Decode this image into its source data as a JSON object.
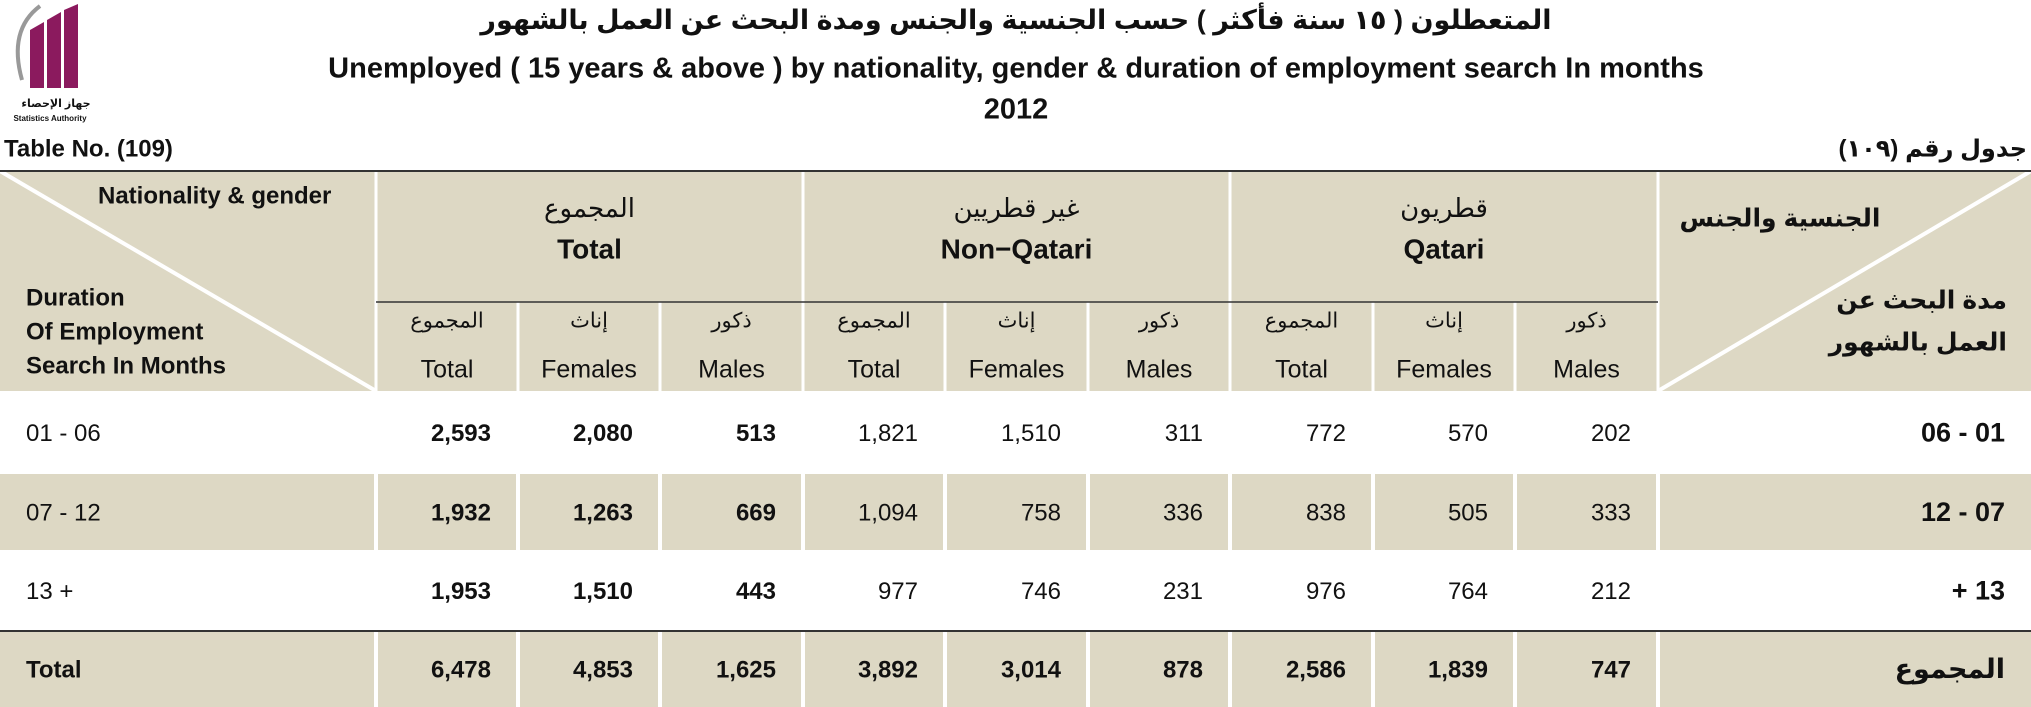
{
  "header": {
    "logo_ar": "جهاز الإحصاء",
    "logo_en": "Statistics Authority",
    "title_ar": "المتعطلون ( ١٥ سنة فأكثر ) حسب الجنسية  والجنس ومدة البحث عن العمل بالشهور",
    "title_en": "Unemployed ( 15 years & above ) by nationality, gender & duration of employment search In months",
    "year": "2012",
    "table_no_en": "Table No. (109)",
    "table_no_ar": "جدول رقم (١٠٩)"
  },
  "table": {
    "corner_left": {
      "top": "Nationality & gender",
      "bottom": [
        "Duration",
        "Of Employment",
        "Search In Months"
      ]
    },
    "corner_right": {
      "top": "الجنسية والجنس",
      "bottom": [
        "مدة البحث عن",
        "العمل بالشهور"
      ]
    },
    "groups": [
      {
        "ar": "المجموع",
        "en": "Total",
        "columns": [
          {
            "ar": "المجموع",
            "en": "Total"
          },
          {
            "ar": "إناث",
            "en": "Females"
          },
          {
            "ar": "ذكور",
            "en": "Males"
          }
        ]
      },
      {
        "ar": "غير قطريين",
        "en": "Non−Qatari",
        "columns": [
          {
            "ar": "المجموع",
            "en": "Total"
          },
          {
            "ar": "إناث",
            "en": "Females"
          },
          {
            "ar": "ذكور",
            "en": "Males"
          }
        ]
      },
      {
        "ar": "قطريون",
        "en": "Qatari",
        "columns": [
          {
            "ar": "المجموع",
            "en": "Total"
          },
          {
            "ar": "إناث",
            "en": "Females"
          },
          {
            "ar": "ذكور",
            "en": "Males"
          }
        ]
      }
    ],
    "rows": [
      {
        "en": "01 - 06",
        "ar": "06 - 01",
        "cells": [
          "2,593",
          "2,080",
          "513",
          "1,821",
          "1,510",
          "311",
          "772",
          "570",
          "202"
        ]
      },
      {
        "en": "07 - 12",
        "ar": "12 - 07",
        "cells": [
          "1,932",
          "1,263",
          "669",
          "1,094",
          "758",
          "336",
          "838",
          "505",
          "333"
        ]
      },
      {
        "en": "13 +",
        "ar": "+ 13",
        "cells": [
          "1,953",
          "1,510",
          "443",
          "977",
          "746",
          "231",
          "976",
          "764",
          "212"
        ]
      },
      {
        "en": "Total",
        "ar": "المجموع",
        "cells": [
          "6,478",
          "4,853",
          "1,625",
          "3,892",
          "3,014",
          "878",
          "2,586",
          "1,839",
          "747"
        ]
      }
    ]
  }
}
